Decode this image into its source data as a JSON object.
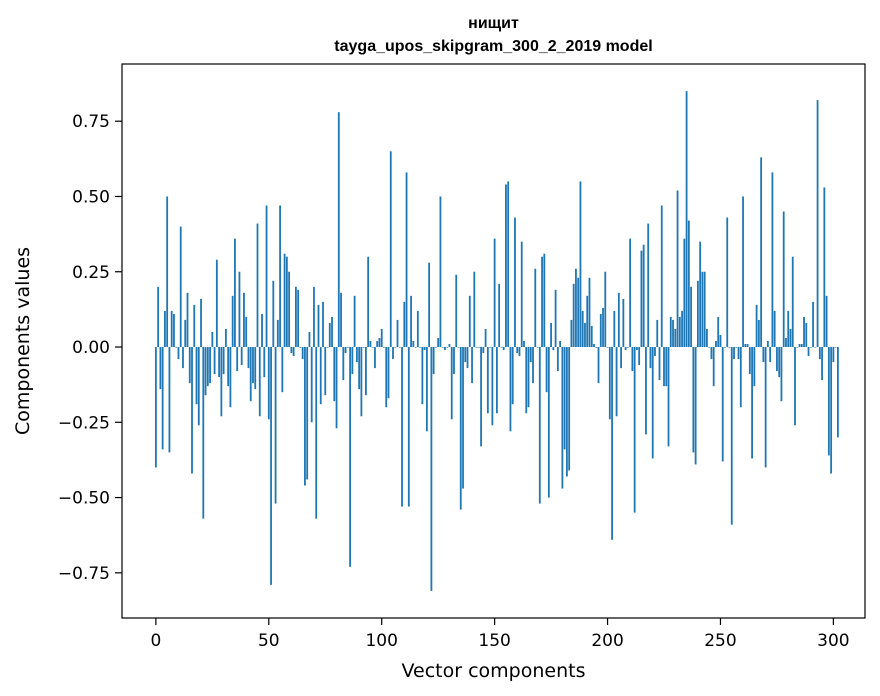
{
  "chart_data": {
    "type": "bar",
    "title_line1": "нищит",
    "title_line2": "tayga_upos_skipgram_300_2_2019 model",
    "xlabel": "Vector components",
    "ylabel": "Components values",
    "xlim": [
      -15,
      314
    ],
    "ylim": [
      -0.9,
      0.94
    ],
    "xticks": [
      0,
      50,
      100,
      150,
      200,
      250,
      300
    ],
    "xtick_labels": [
      "0",
      "50",
      "100",
      "150",
      "200",
      "250",
      "300"
    ],
    "yticks": [
      -0.75,
      -0.5,
      -0.25,
      0.0,
      0.25,
      0.5,
      0.75
    ],
    "ytick_labels": [
      "−0.75",
      "−0.50",
      "−0.25",
      "0.00",
      "0.25",
      "0.50",
      "0.75"
    ],
    "bar_color": "#1f77b4",
    "grid": false,
    "values": [
      -0.4,
      0.2,
      -0.14,
      -0.34,
      0.12,
      0.5,
      -0.35,
      0.12,
      0.11,
      0.0,
      -0.04,
      0.4,
      -0.07,
      0.09,
      0.18,
      -0.12,
      -0.42,
      0.14,
      -0.19,
      -0.26,
      0.16,
      -0.57,
      -0.16,
      -0.13,
      -0.12,
      0.05,
      -0.09,
      0.29,
      -0.1,
      -0.23,
      -0.09,
      0.06,
      -0.13,
      -0.2,
      0.17,
      0.36,
      -0.08,
      0.25,
      -0.06,
      0.18,
      0.1,
      -0.07,
      -0.18,
      -0.12,
      -0.14,
      0.41,
      -0.23,
      0.11,
      -0.1,
      0.47,
      -0.24,
      -0.79,
      0.22,
      -0.52,
      0.09,
      0.47,
      -0.15,
      0.31,
      0.3,
      0.25,
      -0.02,
      -0.03,
      0.2,
      0.19,
      0.0,
      -0.04,
      -0.46,
      -0.44,
      0.05,
      -0.25,
      0.2,
      -0.57,
      0.14,
      -0.19,
      0.15,
      -0.16,
      0.0,
      0.08,
      0.1,
      -0.18,
      -0.27,
      0.78,
      0.18,
      -0.11,
      -0.02,
      0.0,
      -0.73,
      -0.09,
      0.17,
      -0.05,
      -0.14,
      -0.23,
      0.0,
      -0.16,
      0.3,
      0.02,
      0.0,
      -0.07,
      0.02,
      0.03,
      0.06,
      0.0,
      -0.2,
      -0.17,
      0.65,
      -0.04,
      0.0,
      0.09,
      0.0,
      -0.53,
      0.15,
      0.58,
      -0.53,
      0.17,
      0.02,
      0.0,
      0.12,
      0.0,
      -0.19,
      -0.01,
      -0.28,
      0.28,
      -0.81,
      -0.09,
      0.0,
      0.03,
      0.5,
      0.0,
      -0.01,
      0.0,
      0.01,
      -0.24,
      -0.09,
      0.24,
      0.0,
      -0.54,
      -0.47,
      -0.05,
      -0.07,
      0.17,
      -0.12,
      0.25,
      0.0,
      0.0,
      -0.33,
      -0.02,
      0.06,
      -0.22,
      0.0,
      -0.26,
      0.36,
      -0.22,
      0.21,
      0.0,
      -0.01,
      0.54,
      0.55,
      -0.28,
      -0.19,
      0.43,
      -0.02,
      -0.03,
      0.35,
      0.02,
      -0.22,
      -0.2,
      -0.05,
      -0.12,
      0.26,
      0.0,
      -0.52,
      0.3,
      0.31,
      -0.15,
      -0.5,
      0.08,
      -0.01,
      0.19,
      -0.08,
      0.02,
      -0.47,
      -0.34,
      -0.43,
      -0.41,
      0.09,
      0.21,
      0.26,
      0.23,
      0.55,
      0.12,
      0.08,
      0.17,
      0.23,
      0.07,
      0.01,
      0.0,
      -0.12,
      0.11,
      0.13,
      0.25,
      0.0,
      -0.24,
      -0.64,
      0.12,
      -0.23,
      0.18,
      -0.07,
      0.16,
      -0.01,
      0.0,
      0.36,
      -0.08,
      -0.55,
      -0.01,
      -0.06,
      0.32,
      0.34,
      -0.29,
      0.41,
      -0.07,
      -0.37,
      -0.03,
      0.09,
      -0.11,
      0.47,
      -0.13,
      -0.13,
      -0.33,
      0.1,
      0.09,
      0.06,
      0.52,
      0.1,
      0.12,
      0.36,
      0.85,
      0.42,
      0.2,
      -0.35,
      -0.39,
      0.22,
      0.35,
      0.25,
      0.25,
      0.06,
      0.0,
      -0.04,
      -0.13,
      0.02,
      0.1,
      0.04,
      -0.38,
      0.0,
      0.43,
      0.0,
      -0.59,
      -0.04,
      0.0,
      -0.04,
      -0.2,
      0.5,
      0.01,
      0.01,
      -0.09,
      -0.37,
      -0.13,
      0.14,
      0.09,
      0.63,
      -0.05,
      -0.4,
      0.02,
      -0.05,
      0.58,
      0.12,
      -0.08,
      -0.1,
      -0.18,
      0.45,
      0.03,
      0.12,
      0.06,
      0.3,
      -0.26,
      0.0,
      0.01,
      0.01,
      0.1,
      0.08,
      -0.03,
      0.0,
      0.15,
      0.0,
      0.82,
      -0.04,
      -0.11,
      0.53,
      0.17,
      -0.36,
      -0.42,
      -0.05,
      0.0,
      -0.3
    ]
  }
}
